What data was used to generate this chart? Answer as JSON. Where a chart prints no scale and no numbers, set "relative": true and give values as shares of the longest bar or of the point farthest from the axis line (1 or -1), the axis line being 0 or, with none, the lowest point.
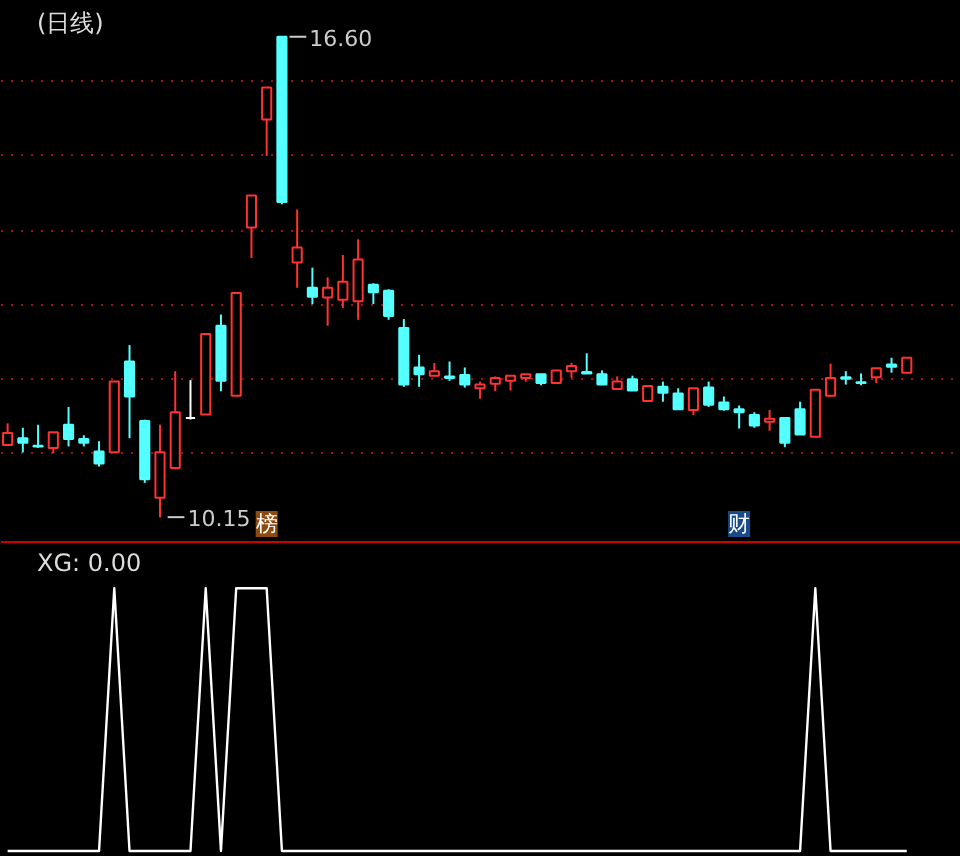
{
  "chart_data": [
    {
      "type": "candlestick",
      "title": "(日线)",
      "categories": [
        null,
        null,
        null,
        null,
        null,
        null,
        null,
        null,
        null,
        null,
        null,
        null,
        null,
        null,
        null,
        null,
        null,
        null,
        null,
        null,
        null,
        null,
        null,
        null,
        null,
        null,
        null,
        null,
        null,
        null,
        null,
        null,
        null,
        null,
        null,
        null,
        null,
        null,
        null,
        null,
        null,
        null,
        null,
        null,
        null,
        null,
        null,
        null,
        null,
        null,
        null,
        null,
        null,
        null,
        null,
        null,
        null,
        null,
        null,
        null
      ],
      "ohlc": [
        [
          11.12,
          11.41,
          11.12,
          11.28
        ],
        [
          11.21,
          11.35,
          11.02,
          11.15
        ],
        [
          11.11,
          11.39,
          11.08,
          11.1
        ],
        [
          11.08,
          11.29,
          11.01,
          11.29
        ],
        [
          11.39,
          11.63,
          11.1,
          11.2
        ],
        [
          11.2,
          11.25,
          11.1,
          11.15
        ],
        [
          11.03,
          11.17,
          10.83,
          10.87
        ],
        [
          11.02,
          11.97,
          11.02,
          11.97
        ],
        [
          12.24,
          12.46,
          11.21,
          11.77
        ],
        [
          11.44,
          11.46,
          10.61,
          10.66
        ],
        [
          10.41,
          11.39,
          10.15,
          11.02
        ],
        [
          10.81,
          12.11,
          10.81,
          11.56
        ],
        [
          11.48,
          11.99,
          11.46,
          11.48
        ],
        [
          11.53,
          12.61,
          11.53,
          12.61
        ],
        [
          12.72,
          12.87,
          11.84,
          11.98
        ],
        [
          11.78,
          13.16,
          11.78,
          13.16
        ],
        [
          14.04,
          14.47,
          13.63,
          14.47
        ],
        [
          15.49,
          15.92,
          15.0,
          15.92
        ],
        [
          16.6,
          16.6,
          14.35,
          14.38
        ],
        [
          13.57,
          14.28,
          13.23,
          13.77
        ],
        [
          13.23,
          13.5,
          13.01,
          13.11
        ],
        [
          13.1,
          13.37,
          12.72,
          13.23
        ],
        [
          13.07,
          13.67,
          12.96,
          13.31
        ],
        [
          13.05,
          13.88,
          12.8,
          13.61
        ],
        [
          13.27,
          13.29,
          13.01,
          13.17
        ],
        [
          13.19,
          13.21,
          12.8,
          12.85
        ],
        [
          12.69,
          12.81,
          11.9,
          11.93
        ],
        [
          12.16,
          12.33,
          11.9,
          12.07
        ],
        [
          12.05,
          12.22,
          12.05,
          12.11
        ],
        [
          12.04,
          12.24,
          11.98,
          12.02
        ],
        [
          12.06,
          12.16,
          11.89,
          11.93
        ],
        [
          11.88,
          11.97,
          11.74,
          11.93
        ],
        [
          11.94,
          12.04,
          11.84,
          12.02
        ],
        [
          11.98,
          12.05,
          11.85,
          12.05
        ],
        [
          12.02,
          12.07,
          11.97,
          12.07
        ],
        [
          12.07,
          12.07,
          11.92,
          11.95
        ],
        [
          11.95,
          12.12,
          11.95,
          12.12
        ],
        [
          12.11,
          12.22,
          12.02,
          12.18
        ],
        [
          12.1,
          12.35,
          12.08,
          12.08
        ],
        [
          12.07,
          12.12,
          11.93,
          11.93
        ],
        [
          11.87,
          12.04,
          11.87,
          11.97
        ],
        [
          12.0,
          12.05,
          11.85,
          11.85
        ],
        [
          11.71,
          11.91,
          11.71,
          11.91
        ],
        [
          11.9,
          11.97,
          11.7,
          11.82
        ],
        [
          11.81,
          11.88,
          11.59,
          11.6
        ],
        [
          11.59,
          11.88,
          11.52,
          11.88
        ],
        [
          11.89,
          11.97,
          11.63,
          11.66
        ],
        [
          11.69,
          11.77,
          11.58,
          11.6
        ],
        [
          11.6,
          11.65,
          11.34,
          11.56
        ],
        [
          11.52,
          11.56,
          11.35,
          11.38
        ],
        [
          11.43,
          11.59,
          11.31,
          11.47
        ],
        [
          11.48,
          11.48,
          11.09,
          11.15
        ],
        [
          11.6,
          11.7,
          11.26,
          11.26
        ],
        [
          11.23,
          11.86,
          11.23,
          11.86
        ],
        [
          11.78,
          12.21,
          11.77,
          12.02
        ],
        [
          12.03,
          12.11,
          11.93,
          12.01
        ],
        [
          11.96,
          12.08,
          11.92,
          11.95
        ],
        [
          12.03,
          12.15,
          11.95,
          12.15
        ],
        [
          12.2,
          12.29,
          12.09,
          12.17
        ],
        [
          12.09,
          12.29,
          12.09,
          12.29
        ]
      ],
      "colors": [
        "#ff3232",
        "#54ffff",
        "#54ffff",
        "#ff3232",
        "#54ffff",
        "#54ffff",
        "#54ffff",
        "#ff3232",
        "#54ffff",
        "#54ffff",
        "#ff3232",
        "#ff3232",
        "#ffffff",
        "#ff3232",
        "#54ffff",
        "#ff3232",
        "#ff3232",
        "#ff3232",
        "#54ffff",
        "#ff3232",
        "#54ffff",
        "#ff3232",
        "#ff3232",
        "#ff3232",
        "#54ffff",
        "#54ffff",
        "#54ffff",
        "#54ffff",
        "#ff3232",
        "#54ffff",
        "#54ffff",
        "#ff3232",
        "#ff3232",
        "#ff3232",
        "#ff3232",
        "#54ffff",
        "#ff3232",
        "#ff3232",
        "#54ffff",
        "#54ffff",
        "#ff3232",
        "#54ffff",
        "#ff3232",
        "#54ffff",
        "#54ffff",
        "#ff3232",
        "#54ffff",
        "#54ffff",
        "#54ffff",
        "#54ffff",
        "#ff3232",
        "#54ffff",
        "#54ffff",
        "#ff3232",
        "#ff3232",
        "#54ffff",
        "#54ffff",
        "#ff3232",
        "#54ffff",
        "#ff3232"
      ],
      "ylim": [
        9.83,
        17.08
      ],
      "yticks": [
        {
          "value": 11,
          "label": null
        },
        {
          "value": 12,
          "label": null
        },
        {
          "value": 13,
          "label": null
        },
        {
          "value": 14,
          "label": null
        },
        {
          "value": 15,
          "label": null
        },
        {
          "value": 16,
          "label": null
        }
      ],
      "grid": "y",
      "tick_labels": false,
      "annotations": [
        "16.60",
        "10.15",
        "榜",
        "财"
      ]
    },
    {
      "type": "line",
      "title": "XG: 0.00",
      "relative": true,
      "categories": [
        null,
        null,
        null,
        null,
        null,
        null,
        null,
        null,
        null,
        null,
        null,
        null,
        null,
        null,
        null,
        null,
        null,
        null,
        null,
        null,
        null,
        null,
        null,
        null,
        null,
        null,
        null,
        null,
        null,
        null,
        null,
        null,
        null,
        null,
        null,
        null,
        null,
        null,
        null,
        null,
        null,
        null,
        null,
        null,
        null,
        null,
        null,
        null,
        null,
        null,
        null,
        null,
        null,
        null,
        null,
        null,
        null,
        null,
        null,
        null
      ],
      "series": [
        {
          "color": "#ffffff",
          "values": [
            0,
            0,
            0,
            0,
            0,
            0,
            0,
            1,
            0,
            0,
            0,
            0,
            0,
            1,
            0,
            1,
            1,
            1,
            0,
            0,
            0,
            0,
            0,
            0,
            0,
            0,
            0,
            0,
            0,
            0,
            0,
            0,
            0,
            0,
            0,
            0,
            0,
            0,
            0,
            0,
            0,
            0,
            0,
            0,
            0,
            0,
            0,
            0,
            0,
            0,
            0,
            0,
            0,
            1,
            0,
            0,
            0,
            0,
            0,
            0
          ]
        }
      ]
    }
  ]
}
